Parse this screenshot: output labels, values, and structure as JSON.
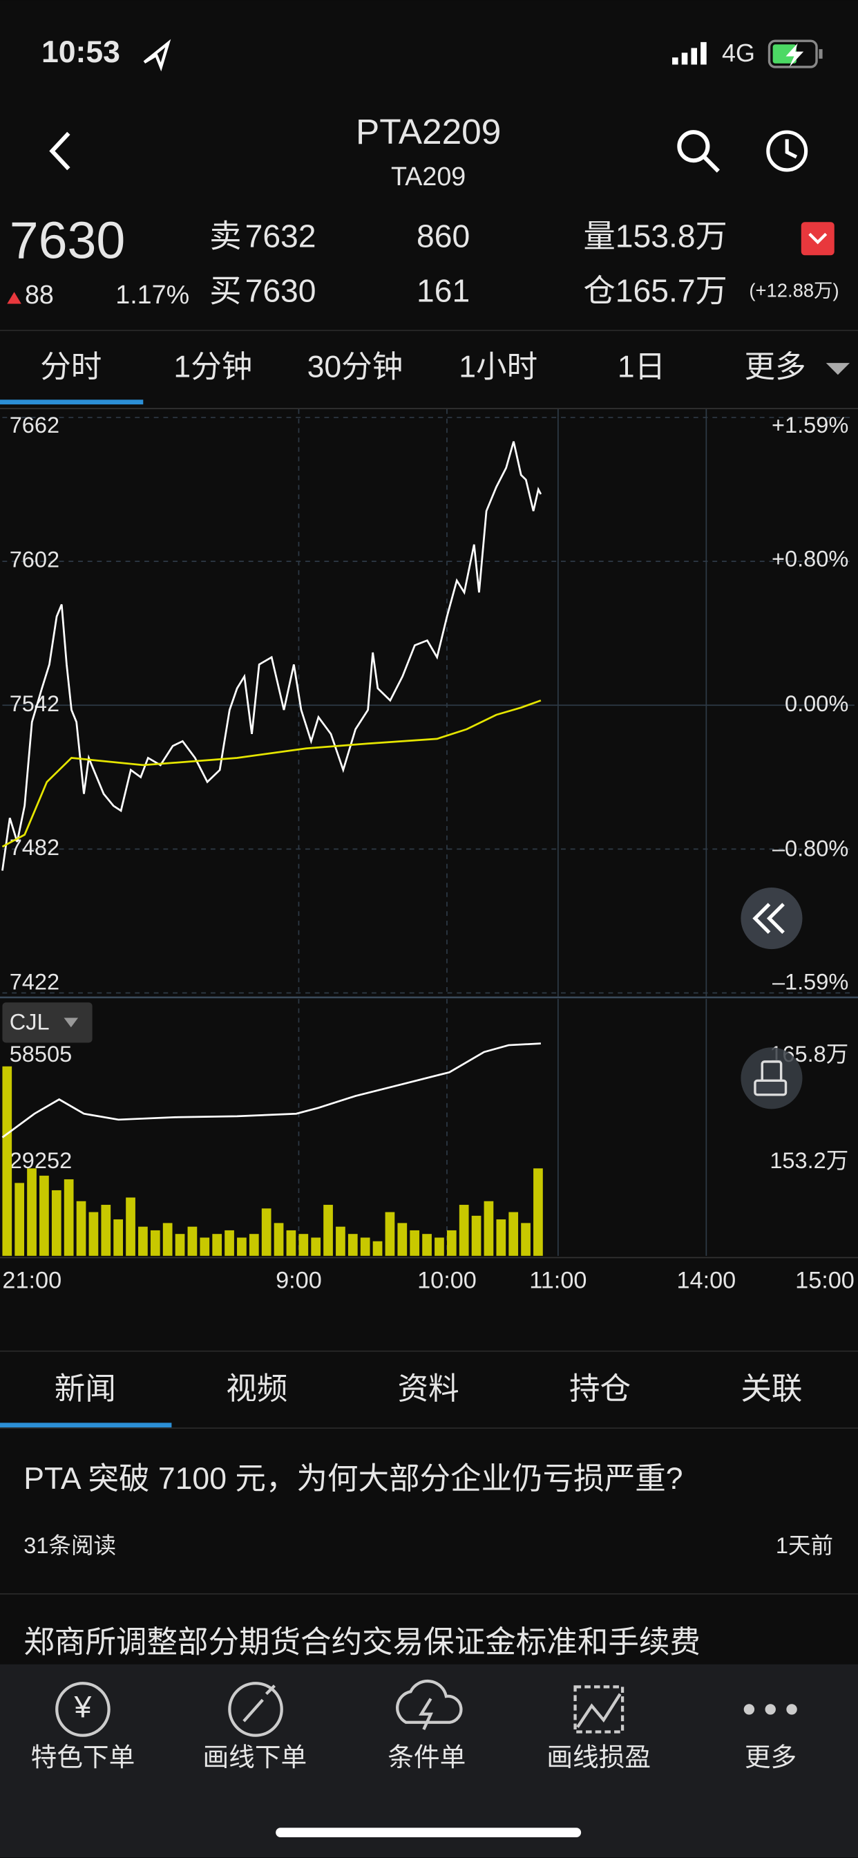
{
  "status_bar": {
    "time": "10:53",
    "network": "4G"
  },
  "header": {
    "title": "PTA2209",
    "subtitle": "TA209"
  },
  "quote": {
    "price": "7630",
    "change": "88",
    "change_pct": "1.17%",
    "sell_label": "卖",
    "sell_price": "7632",
    "sell_qty": "860",
    "buy_label": "买",
    "buy_price": "7630",
    "buy_qty": "161",
    "volume": "量153.8万",
    "open_interest": "仓165.7万",
    "oi_change": "(+12.88万)"
  },
  "period_tabs": [
    "分时",
    "1分钟",
    "30分钟",
    "1小时",
    "1日",
    "更多"
  ],
  "chart_data": [
    {
      "type": "line",
      "xlim": [
        0,
        345
      ],
      "ylim": [
        7422,
        7662
      ],
      "yticks": [
        7662,
        7602,
        7542,
        7482,
        7422
      ],
      "y2lim": [
        -1.59,
        1.59
      ],
      "y2ticks": [
        {
          "value": 1.59,
          "label": "+1.59%"
        },
        {
          "value": 0.8,
          "label": "+0.80%"
        },
        {
          "value": 0,
          "label": "0.00%"
        },
        {
          "value": -0.8,
          "label": "–0.80%"
        },
        {
          "value": -1.59,
          "label": "–1.59%"
        }
      ],
      "series": [
        {
          "color": "#ffffff",
          "x": [
            0,
            3,
            6,
            9,
            12,
            16,
            19,
            22,
            24,
            26,
            28,
            30,
            33,
            35,
            37,
            41,
            45,
            48,
            52,
            56,
            59,
            64,
            69,
            73,
            78,
            83,
            88,
            92,
            95,
            98,
            101,
            104,
            109,
            114,
            118,
            121,
            125,
            128,
            133,
            138,
            143,
            148,
            150,
            152,
            157,
            162,
            167,
            172,
            176,
            180,
            184,
            187,
            191,
            193,
            196,
            200,
            204,
            207,
            210,
            212,
            215,
            217,
            218
          ],
          "values": [
            7473,
            7495,
            7485,
            7500,
            7535,
            7549,
            7559,
            7579,
            7584,
            7559,
            7540,
            7535,
            7505,
            7520,
            7515,
            7505,
            7500,
            7498,
            7515,
            7512,
            7520,
            7517,
            7525,
            7527,
            7520,
            7510,
            7515,
            7540,
            7549,
            7554,
            7530,
            7559,
            7562,
            7540,
            7559,
            7540,
            7527,
            7537,
            7530,
            7515,
            7532,
            7540,
            7564,
            7549,
            7544,
            7554,
            7567,
            7569,
            7562,
            7579,
            7594,
            7589,
            7609,
            7589,
            7623,
            7633,
            7641,
            7652,
            7638,
            7636,
            7623,
            7632,
            7630
          ]
        },
        {
          "color": "#e5e500",
          "x": [
            0,
            9,
            18,
            28,
            57,
            95,
            123,
            148,
            176,
            188,
            200,
            210,
            218
          ],
          "values": [
            7483,
            7488,
            7510,
            7520,
            7517,
            7520,
            7524,
            7526,
            7528,
            7532,
            7538,
            7541,
            7544
          ]
        }
      ]
    },
    {
      "type": "bar",
      "label": "CJL",
      "xlim": [
        0,
        345
      ],
      "xticks": [
        {
          "value": 0,
          "label": "21:00"
        },
        {
          "value": 120,
          "label": "9:00"
        },
        {
          "value": 180,
          "label": "10:00"
        },
        {
          "value": 225,
          "label": "11:00"
        },
        {
          "value": 285,
          "label": "14:00"
        },
        {
          "value": 345,
          "label": "15:00"
        }
      ],
      "ylim": [
        0,
        58505
      ],
      "yticks": [
        58505,
        29252
      ],
      "y2lim": [
        140.6,
        165.8
      ],
      "y2ticks": [
        {
          "value": 165.8,
          "label": "165.8万"
        },
        {
          "value": 153.2,
          "label": "153.2万"
        }
      ],
      "series": [
        {
          "type": "bar",
          "color": "#c8c800",
          "x": [
            0,
            5,
            10,
            15,
            20,
            25,
            30,
            35,
            40,
            45,
            50,
            55,
            60,
            65,
            70,
            75,
            80,
            85,
            90,
            95,
            100,
            105,
            110,
            115,
            120,
            125,
            130,
            135,
            140,
            145,
            150,
            155,
            160,
            165,
            170,
            175,
            180,
            185,
            190,
            195,
            200,
            205,
            210,
            215
          ],
          "values": [
            52000,
            20000,
            24000,
            22000,
            18000,
            21000,
            15000,
            12000,
            14000,
            10000,
            16000,
            8000,
            7000,
            9000,
            6000,
            8000,
            5000,
            6000,
            7000,
            5000,
            6000,
            13000,
            9000,
            7000,
            6000,
            5000,
            14000,
            8000,
            6000,
            5000,
            4000,
            12000,
            9000,
            7000,
            6000,
            5000,
            7000,
            14000,
            11000,
            15000,
            10000,
            12000,
            9000,
            24000
          ]
        },
        {
          "type": "line",
          "axis": "y2",
          "color": "#ffffff",
          "x": [
            0,
            13,
            23,
            33,
            47,
            71,
            95,
            119,
            128,
            143,
            162,
            181,
            195,
            205,
            218
          ],
          "values": [
            154.6,
            157.4,
            159.1,
            157.4,
            156.7,
            157.0,
            157.1,
            157.4,
            158.1,
            159.5,
            160.9,
            162.3,
            164.7,
            165.5,
            165.7
          ]
        }
      ]
    }
  ],
  "news_tabs": [
    "新闻",
    "视频",
    "资料",
    "持仓",
    "关联"
  ],
  "news": [
    {
      "title": "PTA 突破 7100 元，为何大部分企业仍亏损严重?",
      "reads": "31条阅读",
      "time": "1天前"
    },
    {
      "title": "郑商所调整部分期货合约交易保证金标准和手续费"
    }
  ],
  "bottom_nav": [
    "特色下单",
    "画线下单",
    "条件单",
    "画线损盈",
    "更多"
  ]
}
